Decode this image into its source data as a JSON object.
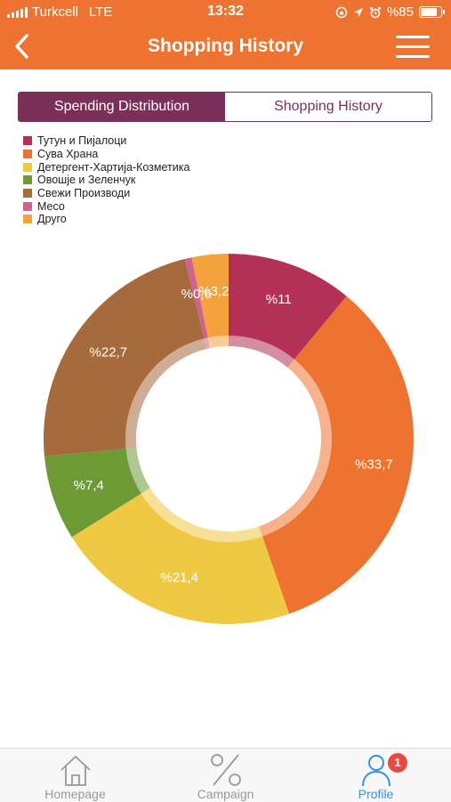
{
  "status_bar": {
    "carrier": "Turkcell",
    "network": "LTE",
    "time": "13:32",
    "battery": "%85"
  },
  "header": {
    "title": "Shopping History",
    "background_color": "#ef7330"
  },
  "segmented_control": {
    "tabs": [
      {
        "label": "Spending Distribution",
        "active": true
      },
      {
        "label": "Shopping History",
        "active": false
      }
    ],
    "accent_color": "#7a3058"
  },
  "chart_data": {
    "type": "pie",
    "subtype": "donut",
    "title": "",
    "legend_position": "top-left",
    "start_angle_deg": 0,
    "direction": "clockwise",
    "slices": [
      {
        "label": "Тутун и Пијалоци",
        "value": 11,
        "display": "%11",
        "color": "#b33154"
      },
      {
        "label": "Сува Храна",
        "value": 33.7,
        "display": "%33,7",
        "color": "#ef7330"
      },
      {
        "label": "Детергент-Хартија-Козметика",
        "value": 21.4,
        "display": "%21,4",
        "color": "#f0c943"
      },
      {
        "label": "Овошје и Зеленчук",
        "value": 7.4,
        "display": "%7,4",
        "color": "#6e9a35"
      },
      {
        "label": "Свежи Производи",
        "value": 22.7,
        "display": "%22,7",
        "color": "#a66a3c"
      },
      {
        "label": "Месо",
        "value": 0.6,
        "display": "%0,6",
        "color": "#d06290"
      },
      {
        "label": "Друго",
        "value": 3.2,
        "display": "%3,2",
        "color": "#f3a23e"
      }
    ]
  },
  "tab_bar": {
    "items": [
      {
        "label": "Homepage",
        "icon": "home-icon",
        "active": false
      },
      {
        "label": "Campaign",
        "icon": "percent-icon",
        "active": false
      },
      {
        "label": "Profile",
        "icon": "profile-icon",
        "active": true,
        "badge": "1"
      }
    ],
    "active_color": "#3b8fd9"
  }
}
